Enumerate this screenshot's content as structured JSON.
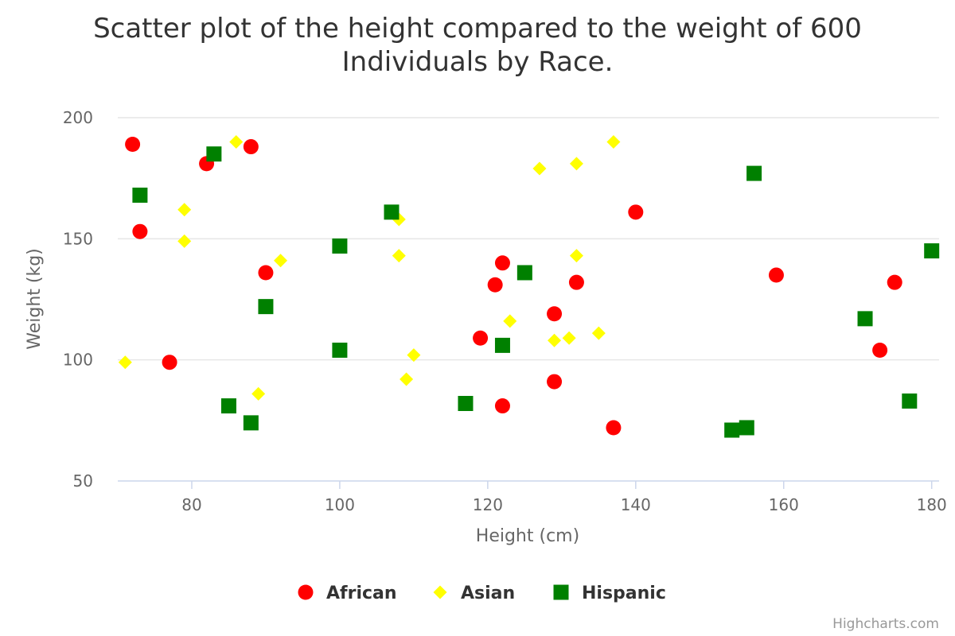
{
  "chart_data": {
    "type": "scatter",
    "title_lines": [
      "Scatter plot of the height compared to the weight of 600",
      "Individuals by Race."
    ],
    "xlabel": "Height (cm)",
    "ylabel": "Weight (kg)",
    "xlim": [
      70,
      181
    ],
    "ylim": [
      50,
      200
    ],
    "x_ticks": [
      80,
      100,
      120,
      140,
      160,
      180
    ],
    "y_ticks": [
      50,
      100,
      150,
      200
    ],
    "grid": "horizontal",
    "legend_position": "bottom-center",
    "credits": "Highcharts.com",
    "series": [
      {
        "name": "African",
        "marker": "circle",
        "color": "#ff0000",
        "points": [
          [
            72,
            189
          ],
          [
            73,
            153
          ],
          [
            77,
            99
          ],
          [
            82,
            181
          ],
          [
            88,
            188
          ],
          [
            90,
            136
          ],
          [
            119,
            109
          ],
          [
            121,
            131
          ],
          [
            122,
            140
          ],
          [
            122,
            81
          ],
          [
            129,
            119
          ],
          [
            129,
            91
          ],
          [
            132,
            132
          ],
          [
            137,
            72
          ],
          [
            140,
            161
          ],
          [
            159,
            135
          ],
          [
            173,
            104
          ],
          [
            175,
            132
          ]
        ]
      },
      {
        "name": "Asian",
        "marker": "diamond",
        "color": "#ffff00",
        "points": [
          [
            71,
            99
          ],
          [
            79,
            162
          ],
          [
            79,
            149
          ],
          [
            86,
            190
          ],
          [
            89,
            86
          ],
          [
            92,
            141
          ],
          [
            108,
            158
          ],
          [
            108,
            143
          ],
          [
            109,
            92
          ],
          [
            110,
            102
          ],
          [
            123,
            116
          ],
          [
            127,
            179
          ],
          [
            129,
            108
          ],
          [
            131,
            109
          ],
          [
            132,
            181
          ],
          [
            132,
            143
          ],
          [
            135,
            111
          ],
          [
            137,
            190
          ]
        ]
      },
      {
        "name": "Hispanic",
        "marker": "square",
        "color": "#008000",
        "points": [
          [
            73,
            168
          ],
          [
            83,
            185
          ],
          [
            85,
            81
          ],
          [
            88,
            74
          ],
          [
            90,
            122
          ],
          [
            100,
            147
          ],
          [
            100,
            104
          ],
          [
            107,
            161
          ],
          [
            117,
            82
          ],
          [
            122,
            106
          ],
          [
            125,
            136
          ],
          [
            153,
            71
          ],
          [
            155,
            72
          ],
          [
            156,
            177
          ],
          [
            171,
            117
          ],
          [
            177,
            83
          ],
          [
            180,
            145
          ]
        ]
      }
    ]
  }
}
